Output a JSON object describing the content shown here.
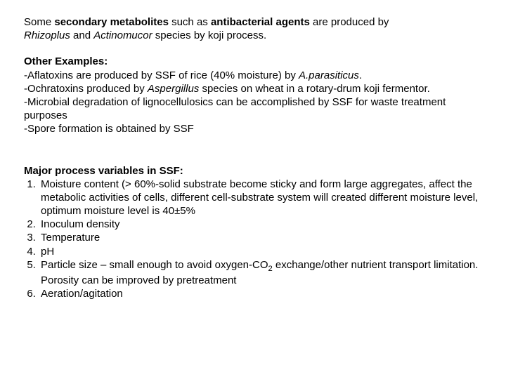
{
  "intro": {
    "line1_prefix": "Some ",
    "line1_bold": "secondary metabolites",
    "line1_mid": " such as ",
    "line1_bold2": "antibacterial agents",
    "line1_suffix": " are produced by",
    "line2_italic1": "Rhizoplus",
    "line2_mid": " and ",
    "line2_italic2": "Actinomucor",
    "line2_suffix": " species by koji process."
  },
  "examples": {
    "heading": "Other Examples:",
    "l1_prefix": "-Aflatoxins are produced by SSF of rice (40% moisture) by ",
    "l1_italic": "A.parasiticus",
    "l1_suffix": ".",
    "l2_prefix": "-Ochratoxins produced by ",
    "l2_italic": "Aspergillus",
    "l2_suffix": " species on wheat in a rotary-drum koji fermentor.",
    "l3": "-Microbial degradation of lignocellulosics can be accomplished by SSF for waste treatment purposes",
    "l4": "-Spore formation is obtained by SSF"
  },
  "vars": {
    "heading": "Major process variables in SSF:",
    "items": [
      "Moisture content (> 60%-solid substrate become sticky and form large aggregates, affect the metabolic activities of cells, different cell-substrate system will created different moisture level, optimum moisture level is 40±5%",
      "Inoculum density",
      "Temperature",
      "pH",
      "",
      "Aeration/agitation"
    ],
    "item5_prefix": "Particle size – small enough to avoid oxygen-CO",
    "item5_sub": "2",
    "item5_suffix": " exchange/other nutrient transport limitation. Porosity can be improved by pretreatment"
  }
}
